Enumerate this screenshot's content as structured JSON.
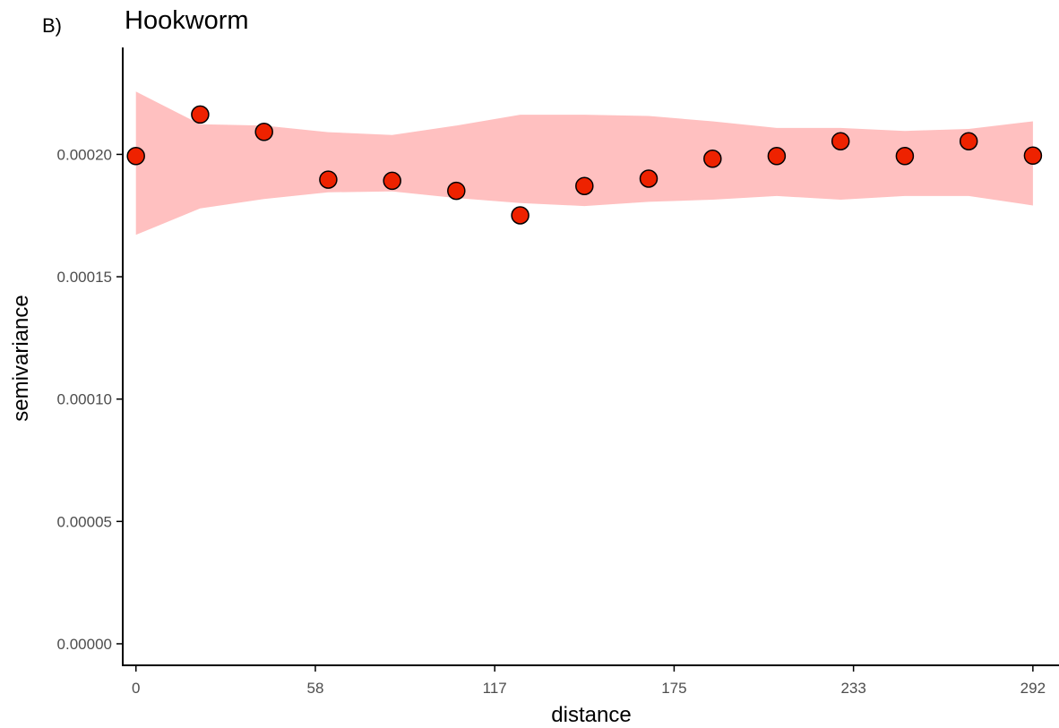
{
  "panel_label": "B)",
  "colors": {
    "band_fill": "#ffc0c0",
    "point_fill": "#ee2200",
    "point_stroke": "#000000",
    "axis": "#000000",
    "tick_text": "#4d4d4d"
  },
  "chart_data": {
    "type": "scatter",
    "title": "Hookworm",
    "xlabel": "distance",
    "ylabel": "semivariance",
    "xlim": [
      -4.3,
      300.5
    ],
    "ylim": [
      -8.8e-06,
      0.0002437
    ],
    "x_ticks": [
      0,
      58.4,
      116.8,
      175.2,
      233.6,
      292.0
    ],
    "x_tick_labels": [
      "0",
      "58",
      "117",
      "175",
      "233",
      "292"
    ],
    "y_ticks": [
      0,
      5e-05,
      0.0001,
      0.00015,
      0.0002
    ],
    "y_tick_labels": [
      "0.00000",
      "0.00005",
      "0.00010",
      "0.00015",
      "0.00020"
    ],
    "grid": false,
    "legend": "none",
    "series": [
      {
        "type": "scatter",
        "x": [
          0,
          20.9,
          41.7,
          62.6,
          83.4,
          104.3,
          125.1,
          146.0,
          166.9,
          187.7,
          208.6,
          229.4,
          250.3,
          271.1,
          292.0
        ],
        "y": [
          0.0001993,
          0.0002163,
          0.0002092,
          0.0001897,
          0.0001892,
          0.0001851,
          0.0001751,
          0.0001871,
          0.0001901,
          0.0001982,
          0.0001993,
          0.0002054,
          0.0001993,
          0.0002054,
          0.0001995
        ]
      },
      {
        "type": "band",
        "x": [
          0,
          20.9,
          41.7,
          62.6,
          83.4,
          104.3,
          125.1,
          146.0,
          166.9,
          187.7,
          208.6,
          229.4,
          250.3,
          271.1,
          292.0
        ],
        "upper": [
          0.0002257,
          0.0002123,
          0.0002118,
          0.0002091,
          0.0002079,
          0.0002118,
          0.0002162,
          0.0002162,
          0.0002157,
          0.0002135,
          0.0002108,
          0.0002108,
          0.0002096,
          0.0002104,
          0.0002135
        ],
        "lower": [
          0.0001671,
          0.0001779,
          0.0001818,
          0.0001845,
          0.0001849,
          0.0001822,
          0.0001801,
          0.0001789,
          0.0001806,
          0.0001815,
          0.000183,
          0.0001815,
          0.000183,
          0.000183,
          0.0001791
        ]
      }
    ]
  }
}
